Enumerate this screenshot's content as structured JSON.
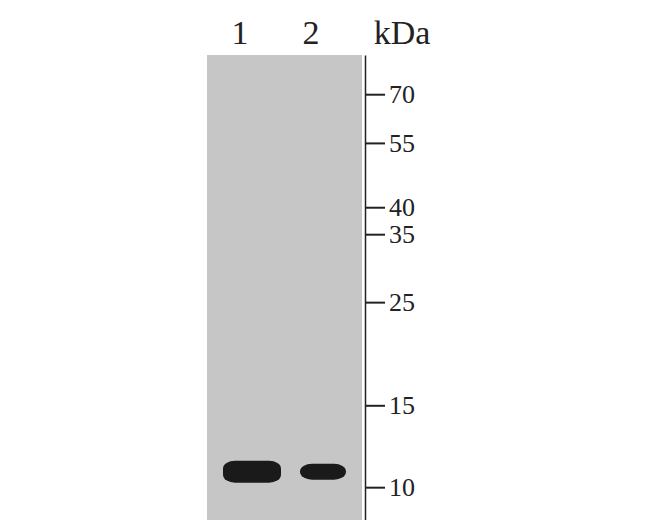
{
  "chart_data": {
    "type": "western_blot",
    "categories": [
      "1",
      "2"
    ],
    "values": [
      10.8,
      10.8
    ],
    "y_label": "kDa",
    "log": "y",
    "ylim": [
      8.5,
      85
    ],
    "yticks": [
      10,
      15,
      25,
      35,
      40,
      55,
      70
    ],
    "color": "#1a1a1a"
  }
}
